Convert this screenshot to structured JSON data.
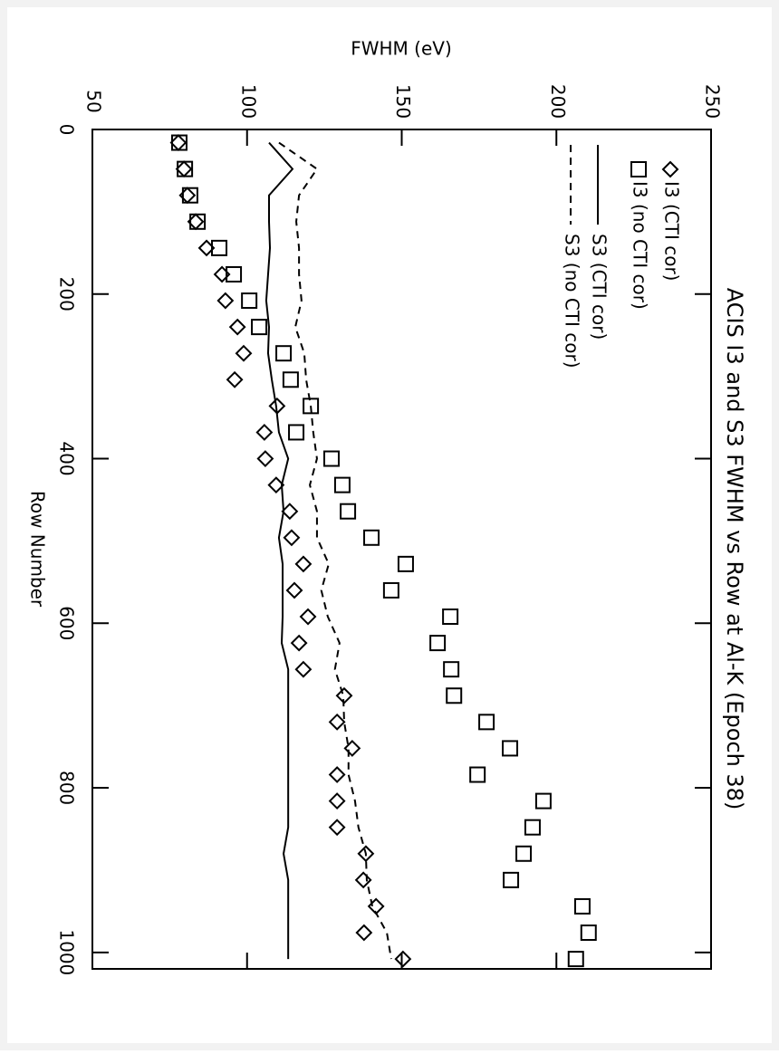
{
  "chart_data": {
    "type": "line",
    "title": "ACIS I3 and S3 FWHM vs Row at Al-K (Epoch 38)",
    "x_label": "Row Number",
    "y_label": "FWHM (eV)",
    "x": [
      16,
      48,
      80,
      112,
      144,
      176,
      208,
      240,
      272,
      304,
      336,
      368,
      400,
      432,
      464,
      496,
      528,
      560,
      592,
      624,
      656,
      688,
      720,
      752,
      784,
      816,
      848,
      880,
      912,
      944,
      976,
      1008
    ],
    "xlim": [
      0,
      1020
    ],
    "xticks": [
      0,
      200,
      400,
      600,
      800,
      1000
    ],
    "ylim": [
      50,
      250
    ],
    "yticks": [
      50,
      100,
      150,
      200,
      250
    ],
    "series": [
      {
        "name": "I3 (CTI cor)",
        "marker": "diamond",
        "color": "#000000",
        "values": [
          77.8,
          79.6,
          80.7,
          83.4,
          86.9,
          91.9,
          93.0,
          96.9,
          98.9,
          96.0,
          109.7,
          105.6,
          105.9,
          109.4,
          113.8,
          114.4,
          118.2,
          115.3,
          119.7,
          116.8,
          118.2,
          131.4,
          129.1,
          134.0,
          129.1,
          129.1,
          129.1,
          138.4,
          137.6,
          141.7,
          137.8,
          150.4
        ]
      },
      {
        "name": "I3 (no CTI cor)",
        "marker": "square",
        "color": "#000000",
        "values": [
          78.1,
          79.9,
          81.6,
          84.0,
          91.0,
          95.7,
          100.7,
          103.9,
          111.8,
          114.1,
          120.6,
          115.9,
          127.3,
          130.8,
          132.6,
          140.2,
          151.3,
          146.6,
          165.7,
          161.6,
          166.0,
          166.9,
          177.4,
          185.0,
          174.5,
          195.8,
          192.3,
          189.4,
          185.3,
          208.4,
          210.4,
          206.3
        ]
      },
      {
        "name": "S3 (CTI cor)",
        "marker": "solid",
        "color": "#000000",
        "values": [
          107.1,
          114.7,
          107.1,
          107.1,
          107.4,
          106.8,
          106.2,
          107.1,
          106.8,
          108.0,
          109.4,
          110.3,
          113.3,
          111.2,
          111.8,
          110.3,
          111.5,
          111.5,
          111.5,
          111.2,
          113.3,
          113.3,
          113.3,
          113.3,
          113.3,
          113.3,
          113.3,
          111.8,
          113.3,
          113.3,
          113.3,
          113.3
        ]
      },
      {
        "name": "S3 (no CTI cor)",
        "marker": "dashed",
        "color": "#000000",
        "values": [
          110.3,
          122.6,
          116.8,
          115.9,
          116.8,
          116.8,
          117.6,
          115.6,
          118.5,
          119.1,
          120.6,
          121.4,
          122.6,
          120.3,
          122.6,
          122.6,
          126.4,
          124.0,
          126.1,
          129.9,
          128.4,
          131.1,
          131.4,
          132.8,
          132.8,
          134.9,
          136.0,
          138.4,
          138.7,
          140.5,
          145.2,
          146.6
        ]
      }
    ]
  }
}
